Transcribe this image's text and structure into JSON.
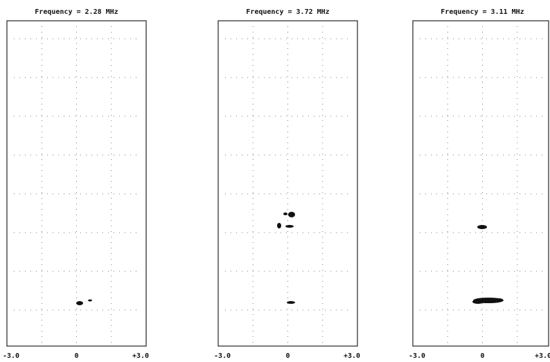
{
  "panels": [
    {
      "title": "Frequency = 2.28 MHz",
      "x_labels": [
        "-3.0",
        "0",
        "+3.0"
      ]
    },
    {
      "title": "Frequency = 3.72 MHz",
      "x_labels": [
        "-3.0",
        "0",
        "+3.0"
      ]
    },
    {
      "title": "Frequency = 3.11 MHz",
      "x_labels": [
        "-3.0",
        "0",
        "+3.0"
      ]
    }
  ]
}
